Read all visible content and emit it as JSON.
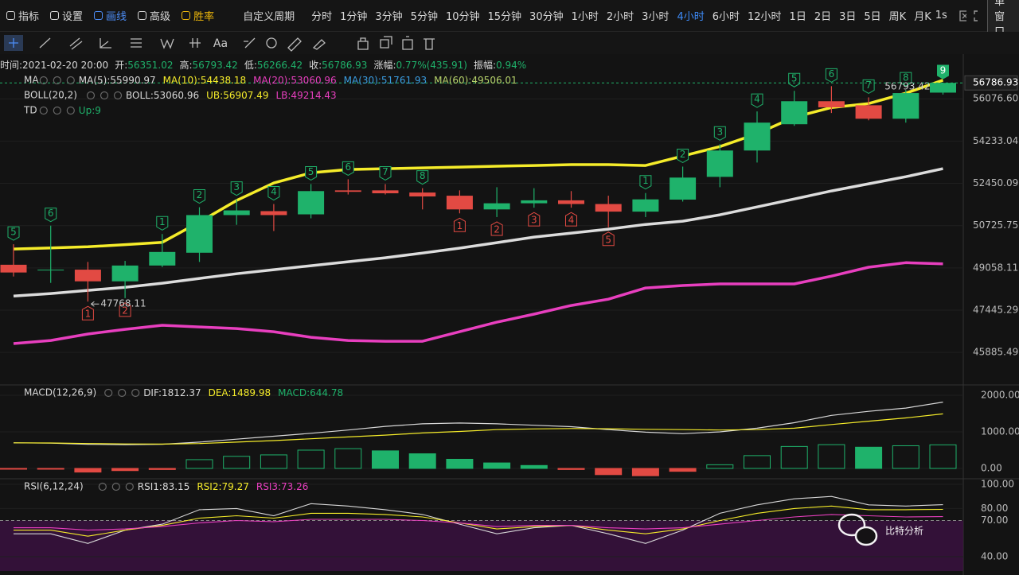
{
  "toolbar": {
    "tools": [
      {
        "label": "指标",
        "color": "#d8d8d8"
      },
      {
        "label": "设置",
        "color": "#d8d8d8"
      },
      {
        "label": "画线",
        "color": "#4c8df6"
      },
      {
        "label": "高级",
        "color": "#d8d8d8"
      },
      {
        "label": "胜率",
        "color": "#f0b90b"
      }
    ],
    "custom_period": "自定义周期",
    "intervals": [
      {
        "label": "分时"
      },
      {
        "label": "1分钟"
      },
      {
        "label": "3分钟"
      },
      {
        "label": "5分钟"
      },
      {
        "label": "10分钟"
      },
      {
        "label": "15分钟"
      },
      {
        "label": "30分钟"
      },
      {
        "label": "1小时"
      },
      {
        "label": "2小时"
      },
      {
        "label": "3小时"
      },
      {
        "label": "4小时",
        "active": true
      },
      {
        "label": "6小时"
      },
      {
        "label": "12小时"
      },
      {
        "label": "1日"
      },
      {
        "label": "2日"
      },
      {
        "label": "3日"
      },
      {
        "label": "5日"
      },
      {
        "label": "周K"
      },
      {
        "label": "月K"
      }
    ],
    "speed": "1s",
    "window": "单窗口"
  },
  "drawing_tools": {
    "text_tool": "Aa"
  },
  "info": [
    {
      "label": "时间:",
      "value": "2021-02-20 20:00",
      "color": "#d8d8d8"
    },
    {
      "label": "开:",
      "value": "56351.02",
      "color": "#1fb26b"
    },
    {
      "label": "高:",
      "value": "56793.42",
      "color": "#1fb26b"
    },
    {
      "label": "低:",
      "value": "56266.42",
      "color": "#1fb26b"
    },
    {
      "label": "收:",
      "value": "56786.93",
      "color": "#1fb26b"
    },
    {
      "label": "涨幅:",
      "value": "0.77%(435.91)",
      "color": "#1fb26b"
    },
    {
      "label": "振幅:",
      "value": "0.94%",
      "color": "#1fb26b"
    }
  ],
  "watermark": "比特分析",
  "chart_data": [
    {
      "type": "candlestick",
      "log_scale": true,
      "grid": true,
      "ylim": [
        44750,
        57840
      ],
      "yticks": [
        45885.49,
        47445.29,
        49058.11,
        50725.75,
        52450.09,
        54233.04,
        {
          "value": 56076.6,
          "label": "56076.60"
        }
      ],
      "up_color": "#1fb26b",
      "down_color": "#e24a43",
      "open": [
        49180,
        48960,
        48990,
        48540,
        49150,
        49650,
        51150,
        51310,
        51180,
        52160,
        52160,
        52070,
        51940,
        51380,
        51630,
        51750,
        51600,
        51290,
        51780,
        52720,
        53830,
        54960,
        55970,
        55790,
        55200,
        56351.02
      ],
      "high": [
        49985,
        50726,
        49290,
        49330,
        50390,
        51470,
        51790,
        51600,
        52420,
        52620,
        52420,
        52250,
        52160,
        52290,
        52250,
        52130,
        51940,
        52050,
        53150,
        54100,
        55520,
        56430,
        56640,
        56140,
        56470,
        56793.42
      ],
      "low": [
        48725,
        48480,
        47768.11,
        47900,
        49090,
        49290,
        50757,
        50510,
        51020,
        51990,
        51990,
        51380,
        51220,
        51070,
        51450,
        51450,
        50660,
        51070,
        51700,
        52290,
        53320,
        54890,
        55450,
        55130,
        55030,
        56266.42
      ],
      "close": [
        48880,
        48990,
        48540,
        49150,
        49680,
        51150,
        51340,
        51150,
        52130,
        52100,
        52040,
        51910,
        51380,
        51630,
        51750,
        51600,
        51290,
        51790,
        52690,
        53830,
        55030,
        55970,
        55700,
        55200,
        56330,
        56786.93
      ],
      "overlays": [
        {
          "color": "#f5ec2a",
          "width": 3.5,
          "values": [
            49796,
            49840,
            49883,
            49970,
            50060,
            50870,
            51744,
            52465,
            52890,
            53028,
            53062,
            53096,
            53130,
            53164,
            53197,
            53231,
            53231,
            53197,
            53596,
            53998,
            54550,
            55270,
            55690,
            55866,
            56325,
            56907.49
          ]
        },
        {
          "color": "#dcdcdc",
          "width": 3.5,
          "values": [
            47978,
            48074,
            48194,
            48314,
            48468,
            48650,
            48831,
            48990,
            49143,
            49297,
            49452,
            49638,
            49830,
            50048,
            50268,
            50427,
            50585,
            50774,
            50903,
            51160,
            51482,
            51807,
            52135,
            52432,
            52727,
            53060.96
          ]
        },
        {
          "color": "#e83fbf",
          "width": 3.5,
          "values": [
            46208,
            46322,
            46559,
            46731,
            46882,
            46821,
            46762,
            46645,
            46440,
            46322,
            46293,
            46293,
            46645,
            46998,
            47297,
            47623,
            47860,
            48286,
            48378,
            48439,
            48439,
            48439,
            48740,
            49083,
            49262,
            49214.43
          ]
        }
      ],
      "td_labels": [
        "5",
        "6",
        "1",
        "2",
        "1",
        "2",
        "3",
        "4",
        "5",
        "6",
        "7",
        "8",
        "1",
        "2",
        "3",
        "4",
        "5",
        "1",
        "2",
        "3",
        "4",
        "5",
        "6",
        "7",
        "8",
        "9"
      ],
      "td_sides": [
        "up",
        "up",
        "down",
        "down",
        "up",
        "up",
        "up",
        "up",
        "up",
        "up",
        "up",
        "up",
        "down",
        "down",
        "down",
        "down",
        "down",
        "up",
        "up",
        "up",
        "up",
        "up",
        "up",
        "up",
        "up",
        "up"
      ],
      "legends": [
        {
          "name": "MA",
          "items": [
            {
              "text": "MA(5):55990.97",
              "color": "#d8d8d8"
            },
            {
              "text": "MA(10):54438.18",
              "color": "#f5ec2a"
            },
            {
              "text": "MA(20):53060.96",
              "color": "#e83fbf"
            },
            {
              "text": "MA(30):51761.93",
              "color": "#3a9ce0"
            },
            {
              "text": "MA(60):49506.01",
              "color": "#b7d36b"
            }
          ]
        },
        {
          "name": "BOLL(20,2)",
          "items": [
            {
              "text": "BOLL:53060.96",
              "color": "#d8d8d8"
            },
            {
              "text": "UB:56907.49",
              "color": "#f5ec2a"
            },
            {
              "text": "LB:49214.43",
              "color": "#e83fbf"
            }
          ]
        },
        {
          "name": "TD",
          "items": [
            {
              "text": "Up:9",
              "color": "#1fb26b"
            }
          ]
        }
      ]
    },
    {
      "type": "macd",
      "ylim": [
        -283,
        2217
      ],
      "yticks": [
        {
          "value": 0,
          "label": "0.00"
        },
        {
          "value": 1000,
          "label": "1000.00"
        },
        {
          "value": 2000,
          "label": "2000.00"
        }
      ],
      "histogram": [
        -10,
        -20,
        -100,
        -60,
        -30,
        240,
        330,
        370,
        500,
        540,
        480,
        400,
        250,
        150,
        80,
        -30,
        -170,
        -200,
        -80,
        100,
        350,
        600,
        650,
        580,
        620,
        644.78
      ],
      "dif": [
        700,
        690,
        660,
        650,
        660,
        720,
        800,
        880,
        960,
        1050,
        1150,
        1220,
        1240,
        1220,
        1180,
        1140,
        1060,
        990,
        950,
        1000,
        1100,
        1250,
        1450,
        1560,
        1650,
        1812.37
      ],
      "dea": [
        700,
        695,
        680,
        670,
        665,
        680,
        720,
        760,
        810,
        860,
        910,
        970,
        1010,
        1060,
        1080,
        1090,
        1085,
        1070,
        1060,
        1050,
        1060,
        1100,
        1200,
        1290,
        1380,
        1489.98
      ],
      "colors": {
        "dif": "#d8d8d8",
        "dea": "#f5ec2a",
        "up": "#1fb26b",
        "down": "#e24a43"
      },
      "legend": {
        "name": "MACD(12,26,9)",
        "items": [
          {
            "text": "DIF:1812.37",
            "color": "#d8d8d8"
          },
          {
            "text": "DEA:1489.98",
            "color": "#f5ec2a"
          },
          {
            "text": "MACD:644.78",
            "color": "#1fb26b"
          }
        ]
      }
    },
    {
      "type": "rsi",
      "ylim": [
        28.1,
        104
      ],
      "yticks": [
        {
          "value": 40,
          "label": "40.00"
        },
        {
          "value": 70,
          "label": "70.00"
        },
        {
          "value": 80,
          "label": "80.00"
        },
        {
          "value": 100,
          "label": "100.00"
        }
      ],
      "band_from": 70,
      "band_color": "#3a1240",
      "series": [
        {
          "color": "#d8d8d8",
          "values": [
            59,
            59,
            51,
            62,
            67,
            79,
            80,
            74,
            84,
            82,
            79,
            75,
            67,
            59,
            64,
            66,
            59,
            51,
            62,
            76,
            83,
            88,
            90,
            83,
            82,
            83.15
          ]
        },
        {
          "color": "#f5ec2a",
          "values": [
            62,
            62,
            57,
            62,
            66,
            72,
            74,
            72,
            76,
            76,
            75,
            73,
            68,
            63,
            65,
            66,
            62,
            59,
            63,
            70,
            76,
            80,
            82,
            79,
            79,
            79.27
          ]
        },
        {
          "color": "#e83fbf",
          "values": [
            64,
            64,
            62,
            63,
            65,
            68,
            70,
            69,
            71,
            71,
            71,
            70,
            68,
            65,
            66,
            66,
            64,
            63,
            64,
            67,
            70,
            73,
            75,
            74,
            73,
            73.26
          ]
        }
      ],
      "legend": {
        "name": "RSI(6,12,24)",
        "items": [
          {
            "text": "RSI1:83.15",
            "color": "#d8d8d8"
          },
          {
            "text": "RSI2:79.27",
            "color": "#f5ec2a"
          },
          {
            "text": "RSI3:73.26",
            "color": "#e83fbf"
          }
        ]
      }
    }
  ]
}
